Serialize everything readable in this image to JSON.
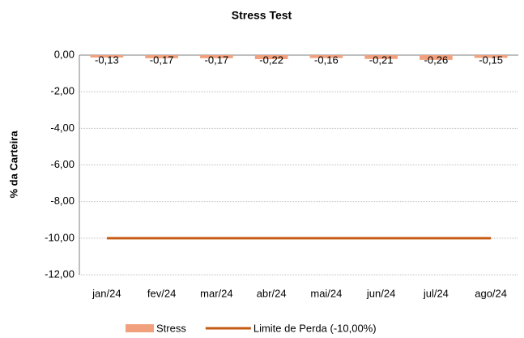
{
  "chart_data": {
    "type": "bar",
    "title": "Stress Test",
    "y_label": "% da Carteira",
    "categories": [
      "jan/24",
      "fev/24",
      "mar/24",
      "abr/24",
      "mai/24",
      "jun/24",
      "jul/24",
      "ago/24"
    ],
    "series": [
      {
        "name": "Stress",
        "type": "bar",
        "color": "#f1a07e",
        "values": [
          -0.13,
          -0.17,
          -0.17,
          -0.22,
          -0.16,
          -0.21,
          -0.26,
          -0.15
        ],
        "value_labels": [
          "-0,13",
          "-0,17",
          "-0,17",
          "-0,22",
          "-0,16",
          "-0,21",
          "-0,26",
          "-0,15"
        ]
      },
      {
        "name": "Limite de Perda (-10,00%)",
        "type": "line",
        "color": "#c55a11",
        "values": [
          -10,
          -10,
          -10,
          -10,
          -10,
          -10,
          -10,
          -10
        ]
      }
    ],
    "ylim": [
      -12,
      0
    ],
    "yticks": [
      {
        "value": 0,
        "label": "0,00"
      },
      {
        "value": -2,
        "label": "-2,00"
      },
      {
        "value": -4,
        "label": "-4,00"
      },
      {
        "value": -6,
        "label": "-6,00"
      },
      {
        "value": -8,
        "label": "-8,00"
      },
      {
        "value": -10,
        "label": "-10,00"
      },
      {
        "value": -12,
        "label": "-12,00"
      }
    ],
    "grid": true,
    "legend": "bottom"
  }
}
